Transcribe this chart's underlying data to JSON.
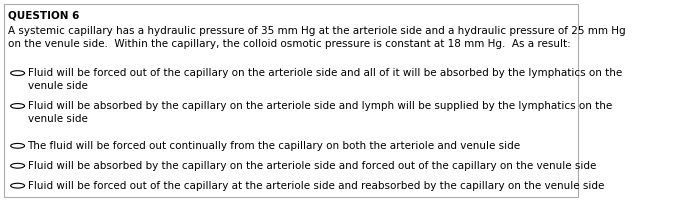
{
  "title": "QUESTION 6",
  "question_text": "A systemic capillary has a hydraulic pressure of 35 mm Hg at the arteriole side and a hydraulic pressure of 25 mm Hg\non the venule side.  Within the capillary, the colloid osmotic pressure is constant at 18 mm Hg.  As a result:",
  "options": [
    "Fluid will be forced out of the capillary on the arteriole side and all of it will be absorbed by the lymphatics on the\nvenule side",
    "Fluid will be absorbed by the capillary on the arteriole side and lymph will be supplied by the lymphatics on the\nvenule side",
    "The fluid will be forced out continually from the capillary on both the arteriole and venule side",
    "Fluid will be absorbed by the capillary on the arteriole side and forced out of the capillary on the venule side",
    "Fluid will be forced out of the capillary at the arteriole side and reabsorbed by the capillary on the venule side"
  ],
  "bg_color": "#ffffff",
  "text_color": "#000000",
  "title_fontsize": 7.5,
  "question_fontsize": 7.5,
  "option_fontsize": 7.5,
  "border_color": "#aaaaaa"
}
